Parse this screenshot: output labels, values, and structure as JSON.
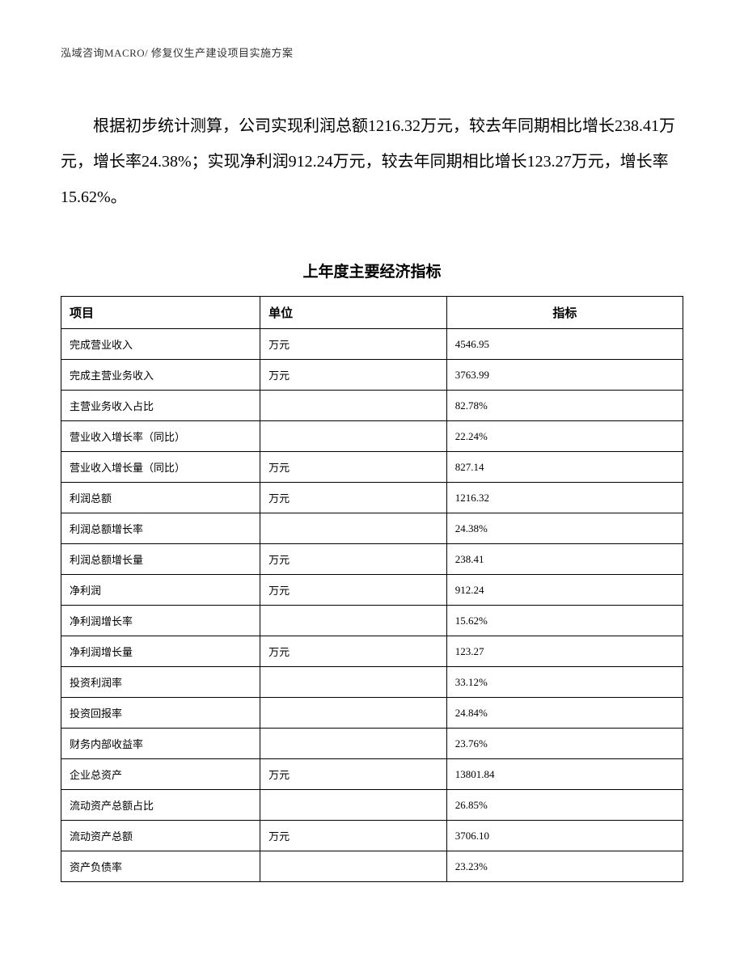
{
  "header": {
    "text": "泓域咨询MACRO/ 修复仪生产建设项目实施方案"
  },
  "body": {
    "paragraph": "根据初步统计测算，公司实现利润总额1216.32万元，较去年同期相比增长238.41万元，增长率24.38%；实现净利润912.24万元，较去年同期相比增长123.27万元，增长率15.62%。"
  },
  "table": {
    "title": "上年度主要经济指标",
    "columns": [
      "项目",
      "单位",
      "指标"
    ],
    "rows": [
      [
        "完成营业收入",
        "万元",
        "4546.95"
      ],
      [
        "完成主营业务收入",
        "万元",
        "3763.99"
      ],
      [
        "主营业务收入占比",
        "",
        "82.78%"
      ],
      [
        "营业收入增长率（同比）",
        "",
        "22.24%"
      ],
      [
        "营业收入增长量（同比）",
        "万元",
        "827.14"
      ],
      [
        "利润总额",
        "万元",
        "1216.32"
      ],
      [
        "利润总额增长率",
        "",
        "24.38%"
      ],
      [
        "利润总额增长量",
        "万元",
        "238.41"
      ],
      [
        "净利润",
        "万元",
        "912.24"
      ],
      [
        "净利润增长率",
        "",
        "15.62%"
      ],
      [
        "净利润增长量",
        "万元",
        "123.27"
      ],
      [
        "投资利润率",
        "",
        "33.12%"
      ],
      [
        "投资回报率",
        "",
        "24.84%"
      ],
      [
        "财务内部收益率",
        "",
        "23.76%"
      ],
      [
        "企业总资产",
        "万元",
        "13801.84"
      ],
      [
        "流动资产总额占比",
        "",
        "26.85%"
      ],
      [
        "流动资产总额",
        "万元",
        "3706.10"
      ],
      [
        "资产负债率",
        "",
        "23.23%"
      ]
    ]
  }
}
